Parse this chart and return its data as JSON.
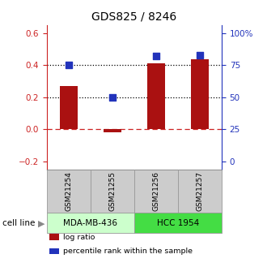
{
  "title": "GDS825 / 8246",
  "samples": [
    "GSM21254",
    "GSM21255",
    "GSM21256",
    "GSM21257"
  ],
  "log_ratio": [
    0.27,
    -0.02,
    0.41,
    0.44
  ],
  "percentile_rank": [
    75,
    50,
    82,
    83
  ],
  "left_ylim": [
    -0.25,
    0.65
  ],
  "left_yticks": [
    -0.2,
    0.0,
    0.2,
    0.4,
    0.6
  ],
  "right_ylim": [
    -6.25,
    106.25
  ],
  "right_yticks": [
    0,
    25,
    50,
    75,
    100
  ],
  "right_yticklabels": [
    "0",
    "25",
    "50",
    "75",
    "100%"
  ],
  "dotted_lines": [
    0.2,
    0.4
  ],
  "dashed_line": 0.0,
  "bar_color": "#aa1111",
  "dot_color": "#2233bb",
  "cell_lines": [
    {
      "label": "MDA-MB-436",
      "samples": [
        0,
        1
      ],
      "color": "#ccffcc"
    },
    {
      "label": "HCC 1954",
      "samples": [
        2,
        3
      ],
      "color": "#44dd44"
    }
  ],
  "cell_line_label": "cell line",
  "legend_items": [
    {
      "color": "#aa1111",
      "label": "log ratio"
    },
    {
      "color": "#2233bb",
      "label": "percentile rank within the sample"
    }
  ],
  "bar_width": 0.4,
  "sample_box_color": "#cccccc",
  "sample_box_edge": "#999999"
}
